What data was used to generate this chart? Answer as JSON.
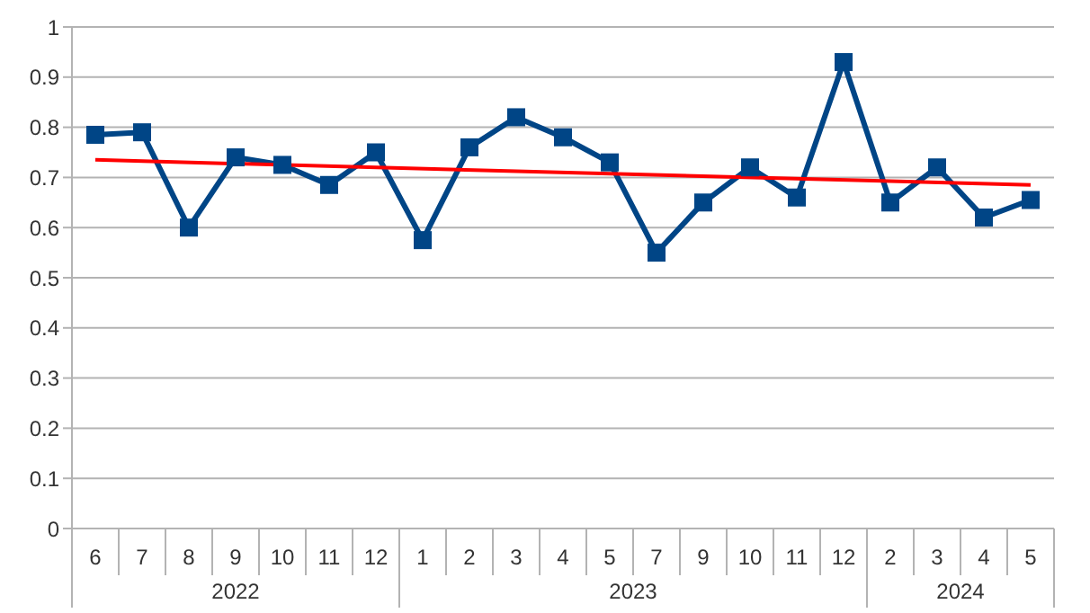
{
  "chart_data": {
    "type": "line",
    "categories": [
      "6",
      "7",
      "8",
      "9",
      "10",
      "11",
      "12",
      "1",
      "2",
      "3",
      "4",
      "5",
      "7",
      "9",
      "10",
      "11",
      "12",
      "2",
      "3",
      "4",
      "5"
    ],
    "series": [
      {
        "color": "#004586",
        "values": [
          0.785,
          0.79,
          0.6,
          0.74,
          0.725,
          0.685,
          0.75,
          0.575,
          0.76,
          0.82,
          0.78,
          0.73,
          0.55,
          0.65,
          0.72,
          0.66,
          0.93,
          0.65,
          0.72,
          0.62,
          0.655
        ]
      },
      {
        "type": "line",
        "color": "#ff0000",
        "marker": "none",
        "values": [
          0.735,
          null,
          null,
          null,
          null,
          null,
          null,
          null,
          null,
          null,
          null,
          null,
          null,
          null,
          null,
          null,
          null,
          null,
          null,
          null,
          0.685
        ]
      }
    ],
    "annotations": [
      "2022",
      "2023",
      "2024"
    ],
    "ylim": [
      0,
      1
    ],
    "yticks": [
      0,
      0.1,
      0.2,
      0.3,
      0.4,
      0.5,
      0.6,
      0.7,
      0.8,
      0.9,
      1
    ],
    "grid": "y",
    "marker": "square",
    "line_style": "solid"
  }
}
